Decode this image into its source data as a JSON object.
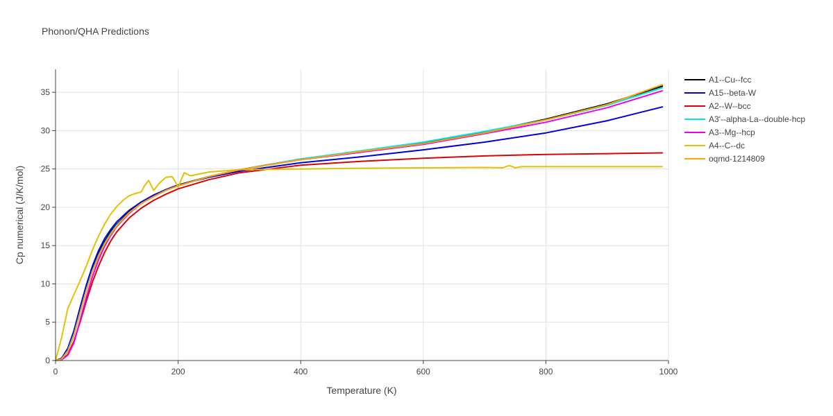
{
  "chart_data": {
    "type": "line",
    "title": "Phonon/QHA Predictions",
    "xlabel": "Temperature (K)",
    "ylabel": "Cp numerical (J/K/mol)",
    "xlim": [
      0,
      1000
    ],
    "ylim": [
      0,
      38
    ],
    "x_ticks": [
      0,
      200,
      400,
      600,
      800,
      1000
    ],
    "y_ticks": [
      0,
      5,
      10,
      15,
      20,
      25,
      30,
      35
    ],
    "grid": true,
    "legend_position": "right",
    "series": [
      {
        "name": "A1--Cu--fcc",
        "color": "#000000",
        "x": [
          0,
          10,
          20,
          30,
          40,
          50,
          60,
          70,
          80,
          90,
          100,
          120,
          140,
          160,
          180,
          200,
          250,
          300,
          400,
          500,
          600,
          700,
          800,
          900,
          990
        ],
        "y": [
          0,
          0.3,
          1.5,
          3.6,
          6.5,
          9.4,
          11.9,
          13.9,
          15.5,
          16.8,
          17.8,
          19.4,
          20.6,
          21.5,
          22.3,
          22.9,
          24.0,
          24.9,
          26.3,
          27.3,
          28.4,
          29.8,
          31.5,
          33.5,
          35.8
        ]
      },
      {
        "name": "A15--beta-W",
        "color": "#0000dd",
        "x": [
          0,
          10,
          20,
          30,
          40,
          50,
          60,
          70,
          80,
          90,
          100,
          120,
          140,
          160,
          180,
          200,
          250,
          300,
          400,
          500,
          600,
          700,
          800,
          900,
          990
        ],
        "y": [
          0,
          0.3,
          1.6,
          3.9,
          6.9,
          9.8,
          12.3,
          14.3,
          15.9,
          17.1,
          18.1,
          19.6,
          20.7,
          21.6,
          22.3,
          22.9,
          23.9,
          24.7,
          25.8,
          26.6,
          27.5,
          28.5,
          29.7,
          31.3,
          33.1
        ]
      },
      {
        "name": "A2--W--bcc",
        "color": "#dd0000",
        "x": [
          0,
          10,
          20,
          30,
          40,
          50,
          60,
          70,
          80,
          90,
          100,
          120,
          140,
          160,
          180,
          200,
          250,
          300,
          400,
          500,
          600,
          700,
          800,
          900,
          990
        ],
        "y": [
          0,
          0.1,
          0.8,
          2.5,
          5.0,
          7.7,
          10.2,
          12.3,
          14.1,
          15.6,
          16.8,
          18.6,
          19.9,
          20.9,
          21.7,
          22.4,
          23.6,
          24.5,
          25.5,
          26.0,
          26.4,
          26.7,
          26.9,
          27.0,
          27.1
        ]
      },
      {
        "name": "A3'--alpha-La--double-hcp",
        "color": "#00e5ee",
        "x": [
          0,
          10,
          20,
          30,
          40,
          50,
          60,
          70,
          80,
          90,
          100,
          120,
          140,
          160,
          180,
          200,
          250,
          300,
          400,
          500,
          600,
          700,
          800,
          900,
          990
        ],
        "y": [
          0,
          0.2,
          1.3,
          3.4,
          6.3,
          9.2,
          11.7,
          13.7,
          15.3,
          16.6,
          17.7,
          19.3,
          20.5,
          21.4,
          22.2,
          22.8,
          24.0,
          24.9,
          26.3,
          27.4,
          28.5,
          29.9,
          31.4,
          33.3,
          35.6
        ]
      },
      {
        "name": "A3--Mg--hcp",
        "color": "#ee00ee",
        "x": [
          0,
          10,
          20,
          30,
          40,
          50,
          60,
          70,
          80,
          90,
          100,
          120,
          140,
          160,
          180,
          200,
          250,
          300,
          400,
          500,
          600,
          700,
          800,
          900,
          990
        ],
        "y": [
          0,
          0.1,
          0.7,
          2.3,
          5.2,
          8.2,
          10.9,
          13.1,
          14.9,
          16.3,
          17.5,
          19.2,
          20.5,
          21.4,
          22.2,
          22.8,
          24.0,
          24.9,
          26.2,
          27.2,
          28.2,
          29.6,
          31.1,
          33.0,
          35.2
        ]
      },
      {
        "name": "A4--C--dc",
        "color": "#e6c000",
        "x": [
          0,
          10,
          20,
          30,
          40,
          50,
          60,
          70,
          80,
          90,
          100,
          110,
          120,
          130,
          140,
          145,
          152,
          160,
          170,
          180,
          190,
          195,
          200,
          205,
          210,
          220,
          250,
          300,
          400,
          500,
          600,
          700,
          730,
          740,
          750,
          760,
          800,
          900,
          990
        ],
        "y": [
          0,
          3.0,
          6.8,
          8.6,
          10.4,
          12.3,
          14.4,
          16.2,
          17.8,
          19.1,
          20.1,
          20.9,
          21.5,
          21.8,
          22.0,
          22.8,
          23.5,
          22.2,
          23.2,
          23.9,
          24.0,
          23.4,
          22.6,
          23.6,
          24.5,
          24.1,
          24.6,
          24.9,
          25.0,
          25.1,
          25.15,
          25.2,
          25.15,
          25.45,
          25.15,
          25.3,
          25.3,
          25.3,
          25.3
        ]
      },
      {
        "name": "oqmd-1214809",
        "color": "#f5a800",
        "x": [
          0,
          10,
          20,
          30,
          40,
          50,
          60,
          70,
          80,
          90,
          100,
          120,
          140,
          160,
          180,
          200,
          250,
          300,
          400,
          500,
          600,
          700,
          800,
          900,
          990
        ],
        "y": [
          0,
          0.2,
          1.2,
          3.3,
          6.2,
          9.1,
          11.6,
          13.6,
          15.2,
          16.5,
          17.6,
          19.3,
          20.5,
          21.4,
          22.2,
          22.8,
          24.0,
          24.9,
          26.2,
          27.3,
          28.3,
          29.7,
          31.4,
          33.4,
          36.0
        ]
      }
    ]
  }
}
